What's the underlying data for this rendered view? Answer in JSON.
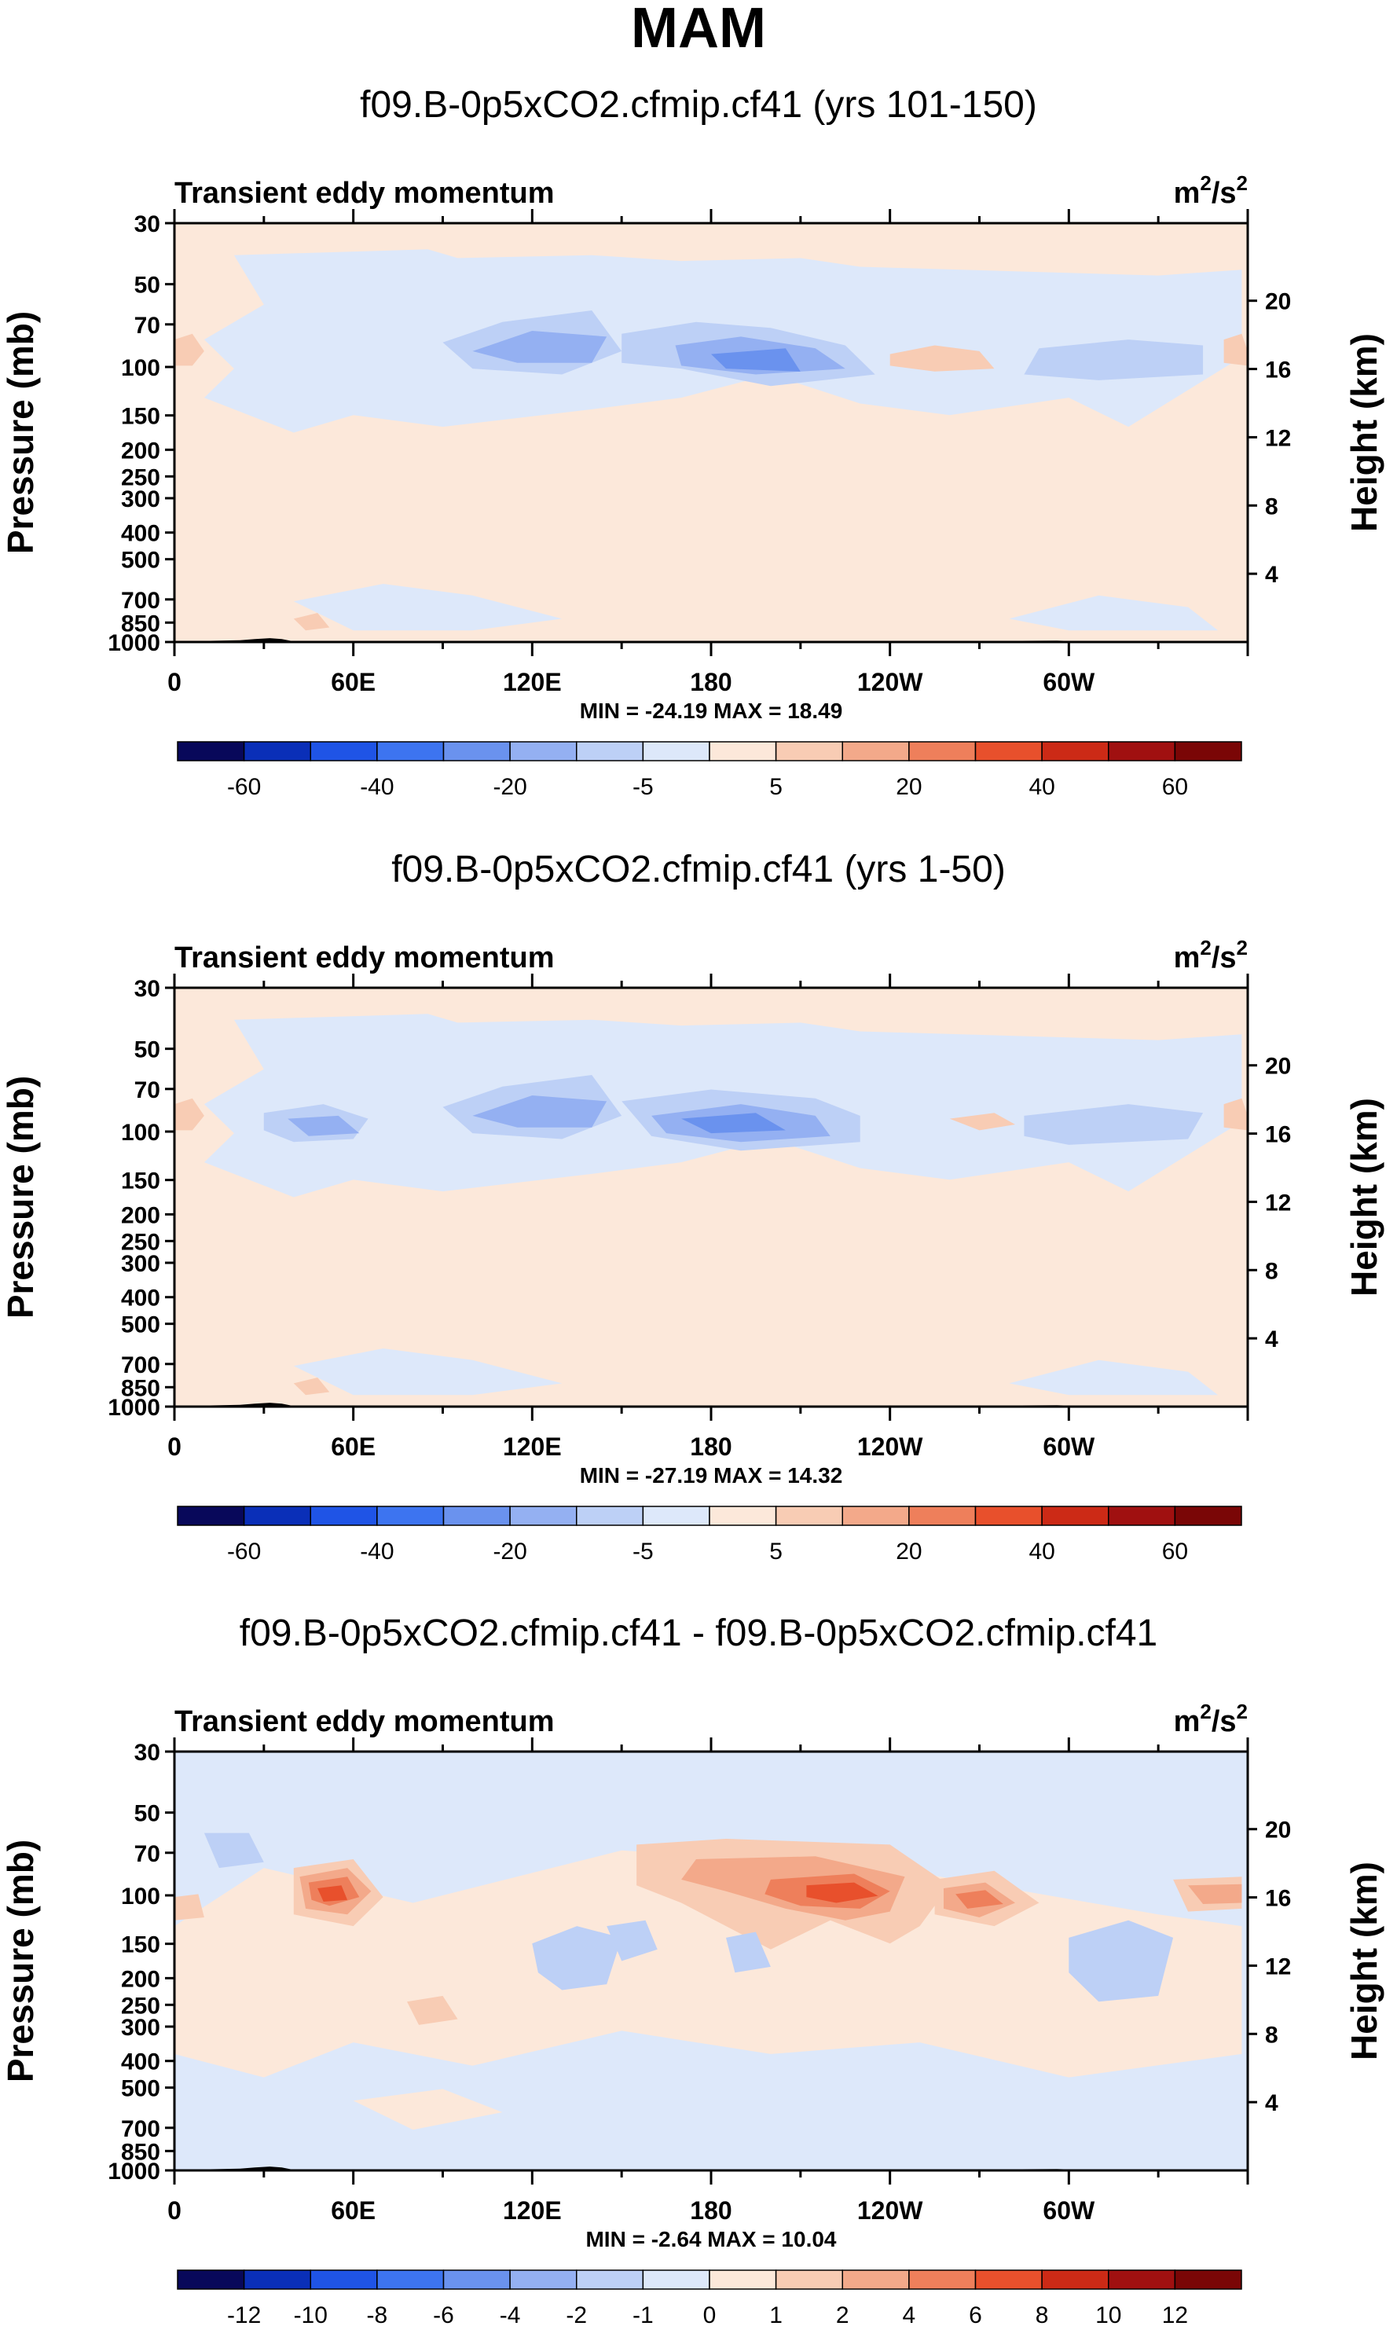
{
  "page": {
    "title": "MAM"
  },
  "palette": {
    "abs": [
      "#08085a",
      "#0a2fb8",
      "#1f54e6",
      "#3d74f0",
      "#6a92ee",
      "#94b0f2",
      "#bdd0f6",
      "#dde8fa",
      "#fce8da",
      "#f8ccb4",
      "#f3a98a",
      "#ee7f5b",
      "#e8502c",
      "#cc2a16",
      "#a01010",
      "#7a0606"
    ],
    "diff": [
      "#08085a",
      "#0a2fb8",
      "#1f54e6",
      "#3d74f0",
      "#6a92ee",
      "#94b0f2",
      "#bdd0f6",
      "#dde8fa",
      "#fce8da",
      "#f8ccb4",
      "#f3a98a",
      "#ee7f5b",
      "#e8502c",
      "#cc2a16",
      "#a01010",
      "#7a0606"
    ]
  },
  "chart_data": [
    {
      "type": "heatmap",
      "title": "f09.B-0p5xCO2.cfmip.cf41 (yrs 101-150)",
      "variable": "Transient eddy momentum",
      "units_base": "m",
      "units_exp1": "2",
      "units_mid": "/s",
      "units_exp2": "2",
      "ylabel": "Pressure (mb)",
      "y2label": "Height (km)",
      "x_ticks": [
        "0",
        "60E",
        "120E",
        "180",
        "120W",
        "60W"
      ],
      "x_tick_lons": [
        0,
        60,
        120,
        180,
        240,
        300
      ],
      "xlim": [
        0,
        360
      ],
      "pressure_levels": [
        "30",
        "50",
        "70",
        "100",
        "150",
        "200",
        "250",
        "300",
        "400",
        "500",
        "700",
        "850",
        "1000"
      ],
      "pressure_values": [
        30,
        50,
        70,
        100,
        150,
        200,
        250,
        300,
        400,
        500,
        700,
        850,
        1000
      ],
      "ylim_mb": [
        1000,
        30
      ],
      "height_ticks": [
        "20",
        "16",
        "12",
        "8",
        "4"
      ],
      "height_values_km": [
        20,
        16,
        12,
        8,
        4
      ],
      "stats": "MIN = -24.19  MAX = 18.49",
      "min": -24.19,
      "max": 18.49,
      "colorbar_labels": [
        "-60",
        "-40",
        "-20",
        "-5",
        "5",
        "20",
        "40",
        "60"
      ],
      "colorbar_levels": [
        -70,
        -60,
        -50,
        -40,
        -30,
        -20,
        -10,
        -5,
        0,
        5,
        10,
        20,
        30,
        40,
        50,
        60,
        70
      ]
    },
    {
      "type": "heatmap",
      "title": "f09.B-0p5xCO2.cfmip.cf41 (yrs 1-50)",
      "variable": "Transient eddy momentum",
      "units_base": "m",
      "units_exp1": "2",
      "units_mid": "/s",
      "units_exp2": "2",
      "ylabel": "Pressure (mb)",
      "y2label": "Height (km)",
      "x_ticks": [
        "0",
        "60E",
        "120E",
        "180",
        "120W",
        "60W"
      ],
      "x_tick_lons": [
        0,
        60,
        120,
        180,
        240,
        300
      ],
      "xlim": [
        0,
        360
      ],
      "pressure_levels": [
        "30",
        "50",
        "70",
        "100",
        "150",
        "200",
        "250",
        "300",
        "400",
        "500",
        "700",
        "850",
        "1000"
      ],
      "pressure_values": [
        30,
        50,
        70,
        100,
        150,
        200,
        250,
        300,
        400,
        500,
        700,
        850,
        1000
      ],
      "ylim_mb": [
        1000,
        30
      ],
      "height_ticks": [
        "20",
        "16",
        "12",
        "8",
        "4"
      ],
      "height_values_km": [
        20,
        16,
        12,
        8,
        4
      ],
      "stats": "MIN = -27.19  MAX = 14.32",
      "min": -27.19,
      "max": 14.32,
      "colorbar_labels": [
        "-60",
        "-40",
        "-20",
        "-5",
        "5",
        "20",
        "40",
        "60"
      ],
      "colorbar_levels": [
        -70,
        -60,
        -50,
        -40,
        -30,
        -20,
        -10,
        -5,
        0,
        5,
        10,
        20,
        30,
        40,
        50,
        60,
        70
      ]
    },
    {
      "type": "heatmap",
      "title": "f09.B-0p5xCO2.cfmip.cf41 - f09.B-0p5xCO2.cfmip.cf41",
      "variable": "Transient eddy momentum",
      "units_base": "m",
      "units_exp1": "2",
      "units_mid": "/s",
      "units_exp2": "2",
      "ylabel": "Pressure (mb)",
      "y2label": "Height (km)",
      "x_ticks": [
        "0",
        "60E",
        "120E",
        "180",
        "120W",
        "60W"
      ],
      "x_tick_lons": [
        0,
        60,
        120,
        180,
        240,
        300
      ],
      "xlim": [
        0,
        360
      ],
      "pressure_levels": [
        "30",
        "50",
        "70",
        "100",
        "150",
        "200",
        "250",
        "300",
        "400",
        "500",
        "700",
        "850",
        "1000"
      ],
      "pressure_values": [
        30,
        50,
        70,
        100,
        150,
        200,
        250,
        300,
        400,
        500,
        700,
        850,
        1000
      ],
      "ylim_mb": [
        1000,
        30
      ],
      "height_ticks": [
        "20",
        "16",
        "12",
        "8",
        "4"
      ],
      "height_values_km": [
        20,
        16,
        12,
        8,
        4
      ],
      "stats": "MIN = -2.64  MAX = 10.04",
      "min": -2.64,
      "max": 10.04,
      "colorbar_labels": [
        "-12",
        "-10",
        "-8",
        "-6",
        "-4",
        "-2",
        "-1",
        "0",
        "1",
        "2",
        "4",
        "6",
        "8",
        "10",
        "12"
      ],
      "colorbar_levels": [
        -14,
        -12,
        -10,
        -8,
        -6,
        -4,
        -2,
        -1,
        0,
        1,
        2,
        4,
        6,
        8,
        10,
        12,
        14
      ]
    }
  ]
}
